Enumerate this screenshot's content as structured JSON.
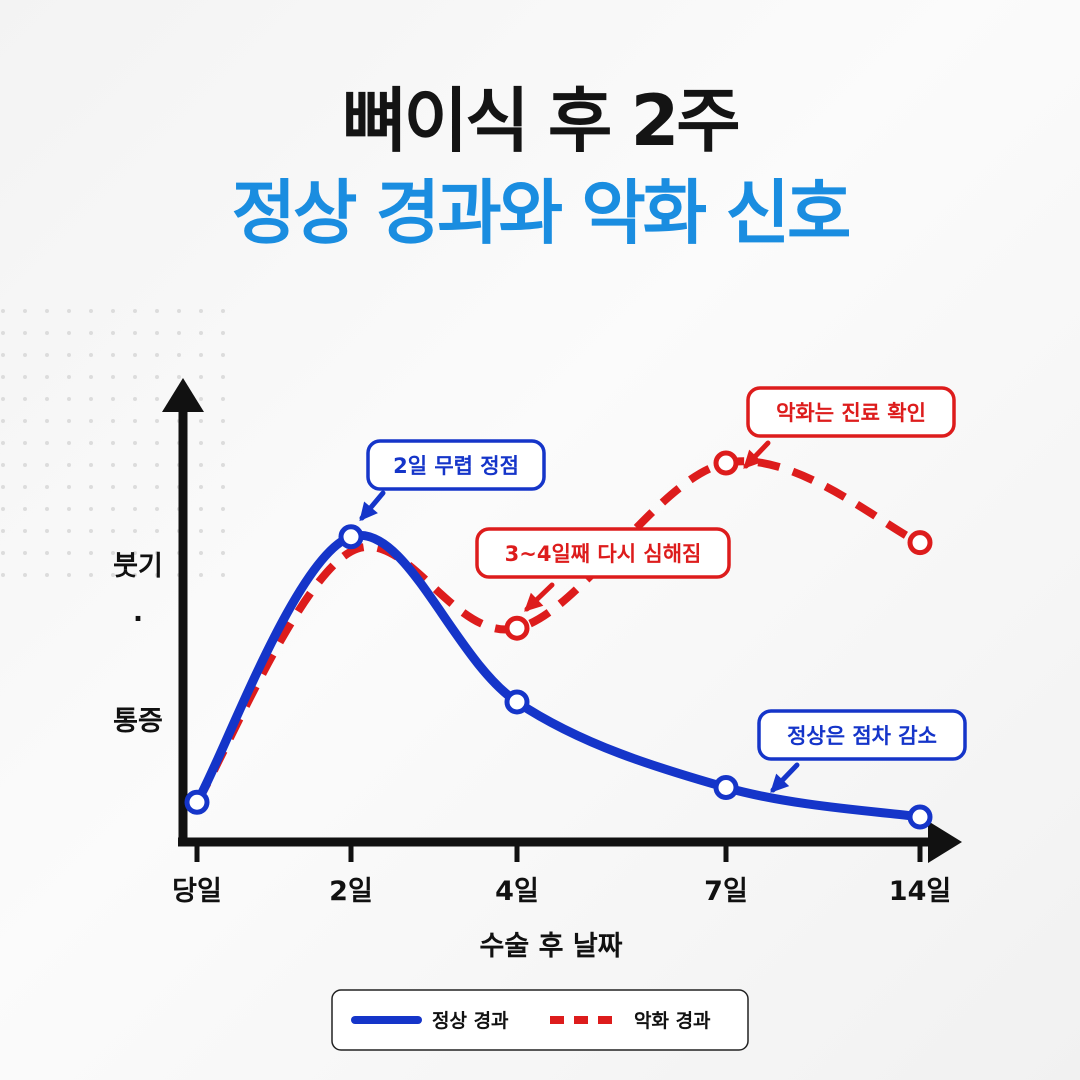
{
  "title": {
    "line1": "뼈이식 후 2주",
    "line2": "정상 경과와 악화 신호"
  },
  "colors": {
    "normal": "#1535c9",
    "worse": "#dd1c1c",
    "title_accent": "#1a8de0"
  },
  "chart_data": {
    "type": "line",
    "xlabel": "수술 후 날짜",
    "ylabel_lines": [
      "붓기",
      "·",
      "통증"
    ],
    "categories": [
      "당일",
      "2일",
      "4일",
      "7일",
      "14일"
    ],
    "y_scale": "qualitative (no numeric ticks)",
    "series": [
      {
        "name": "정상 경과",
        "style": "solid",
        "values": [
          0.05,
          0.95,
          0.39,
          0.1,
          0.0
        ]
      },
      {
        "name": "악화 경과",
        "style": "dashed",
        "values": [
          0.05,
          0.9,
          0.64,
          1.2,
          0.93
        ]
      }
    ],
    "annotations": [
      {
        "text": "2일 무렵 정점",
        "series": "정상 경과",
        "point": 1
      },
      {
        "text": "3~4일째 다시 심해짐",
        "series": "악화 경과",
        "point": 2
      },
      {
        "text": "악화는 진료 확인",
        "series": "악화 경과",
        "point": 3
      },
      {
        "text": "정상은 점차 감소",
        "series": "정상 경과",
        "point": 3
      }
    ],
    "legend": {
      "position": "bottom-center"
    }
  }
}
